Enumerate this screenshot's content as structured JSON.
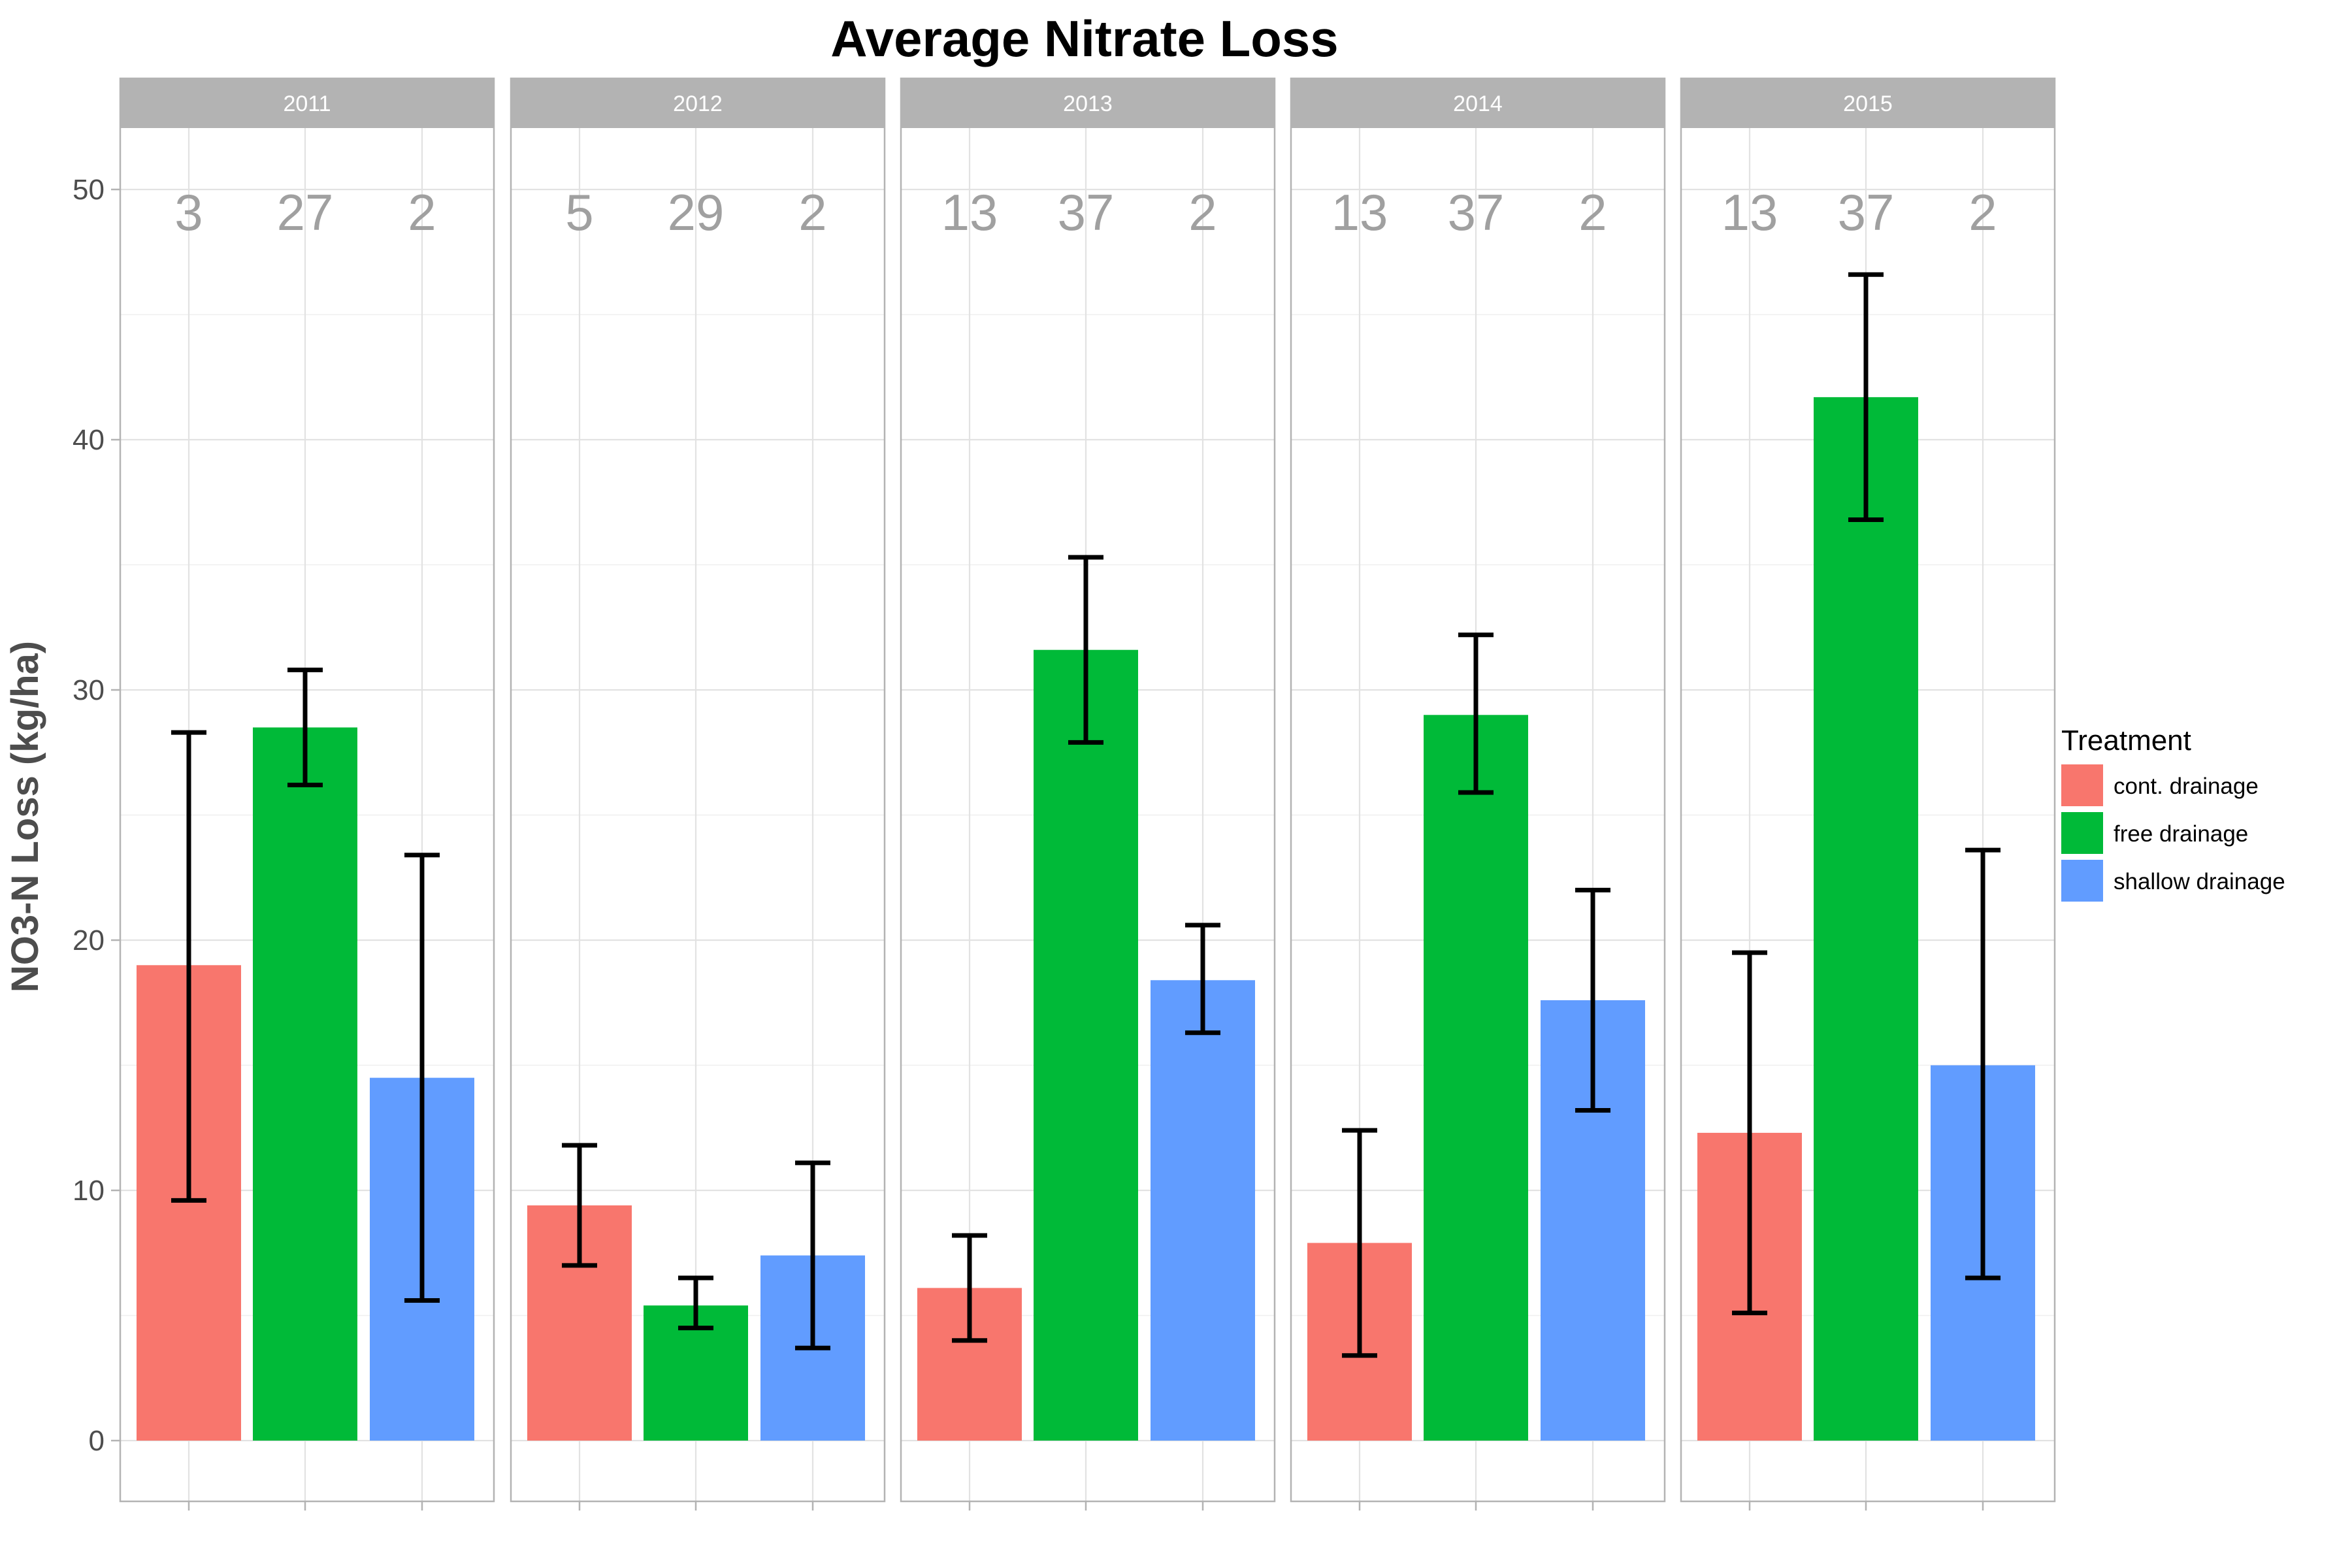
{
  "chart_data": {
    "type": "bar",
    "title": "Average Nitrate Loss",
    "ylabel": "NO3-N Loss (kg/ha)",
    "xlabel": "",
    "ylim": [
      -2.4,
      50.8
    ],
    "yticks": [
      0,
      10,
      20,
      30,
      40,
      50
    ],
    "grid": true,
    "legend_title": "Treatment",
    "legend_position": "right",
    "series": [
      {
        "name": "cont. drainage",
        "color": "#F8766D"
      },
      {
        "name": "free drainage",
        "color": "#00BA38"
      },
      {
        "name": "shallow drainage",
        "color": "#619CFF"
      }
    ],
    "panels": [
      {
        "label": "2011",
        "counts": [
          "3",
          "27",
          "2"
        ],
        "values": [
          19.0,
          28.5,
          14.5
        ],
        "error_low": [
          9.6,
          26.2,
          5.6
        ],
        "error_high": [
          28.3,
          30.8,
          23.4
        ]
      },
      {
        "label": "2012",
        "counts": [
          "5",
          "29",
          "2"
        ],
        "values": [
          9.4,
          5.4,
          7.4
        ],
        "error_low": [
          7.0,
          4.5,
          3.7
        ],
        "error_high": [
          11.8,
          6.5,
          11.1
        ]
      },
      {
        "label": "2013",
        "counts": [
          "13",
          "37",
          "2"
        ],
        "values": [
          6.1,
          31.6,
          18.4
        ],
        "error_low": [
          4.0,
          27.9,
          16.3
        ],
        "error_high": [
          8.2,
          35.3,
          20.6
        ]
      },
      {
        "label": "2014",
        "counts": [
          "13",
          "37",
          "2"
        ],
        "values": [
          7.9,
          29.0,
          17.6
        ],
        "error_low": [
          3.4,
          25.9,
          13.2
        ],
        "error_high": [
          12.4,
          32.2,
          22.0
        ]
      },
      {
        "label": "2015",
        "counts": [
          "13",
          "37",
          "2"
        ],
        "values": [
          12.3,
          41.7,
          15.0
        ],
        "error_low": [
          5.1,
          36.8,
          6.5
        ],
        "error_high": [
          19.5,
          46.6,
          23.6
        ]
      }
    ]
  }
}
